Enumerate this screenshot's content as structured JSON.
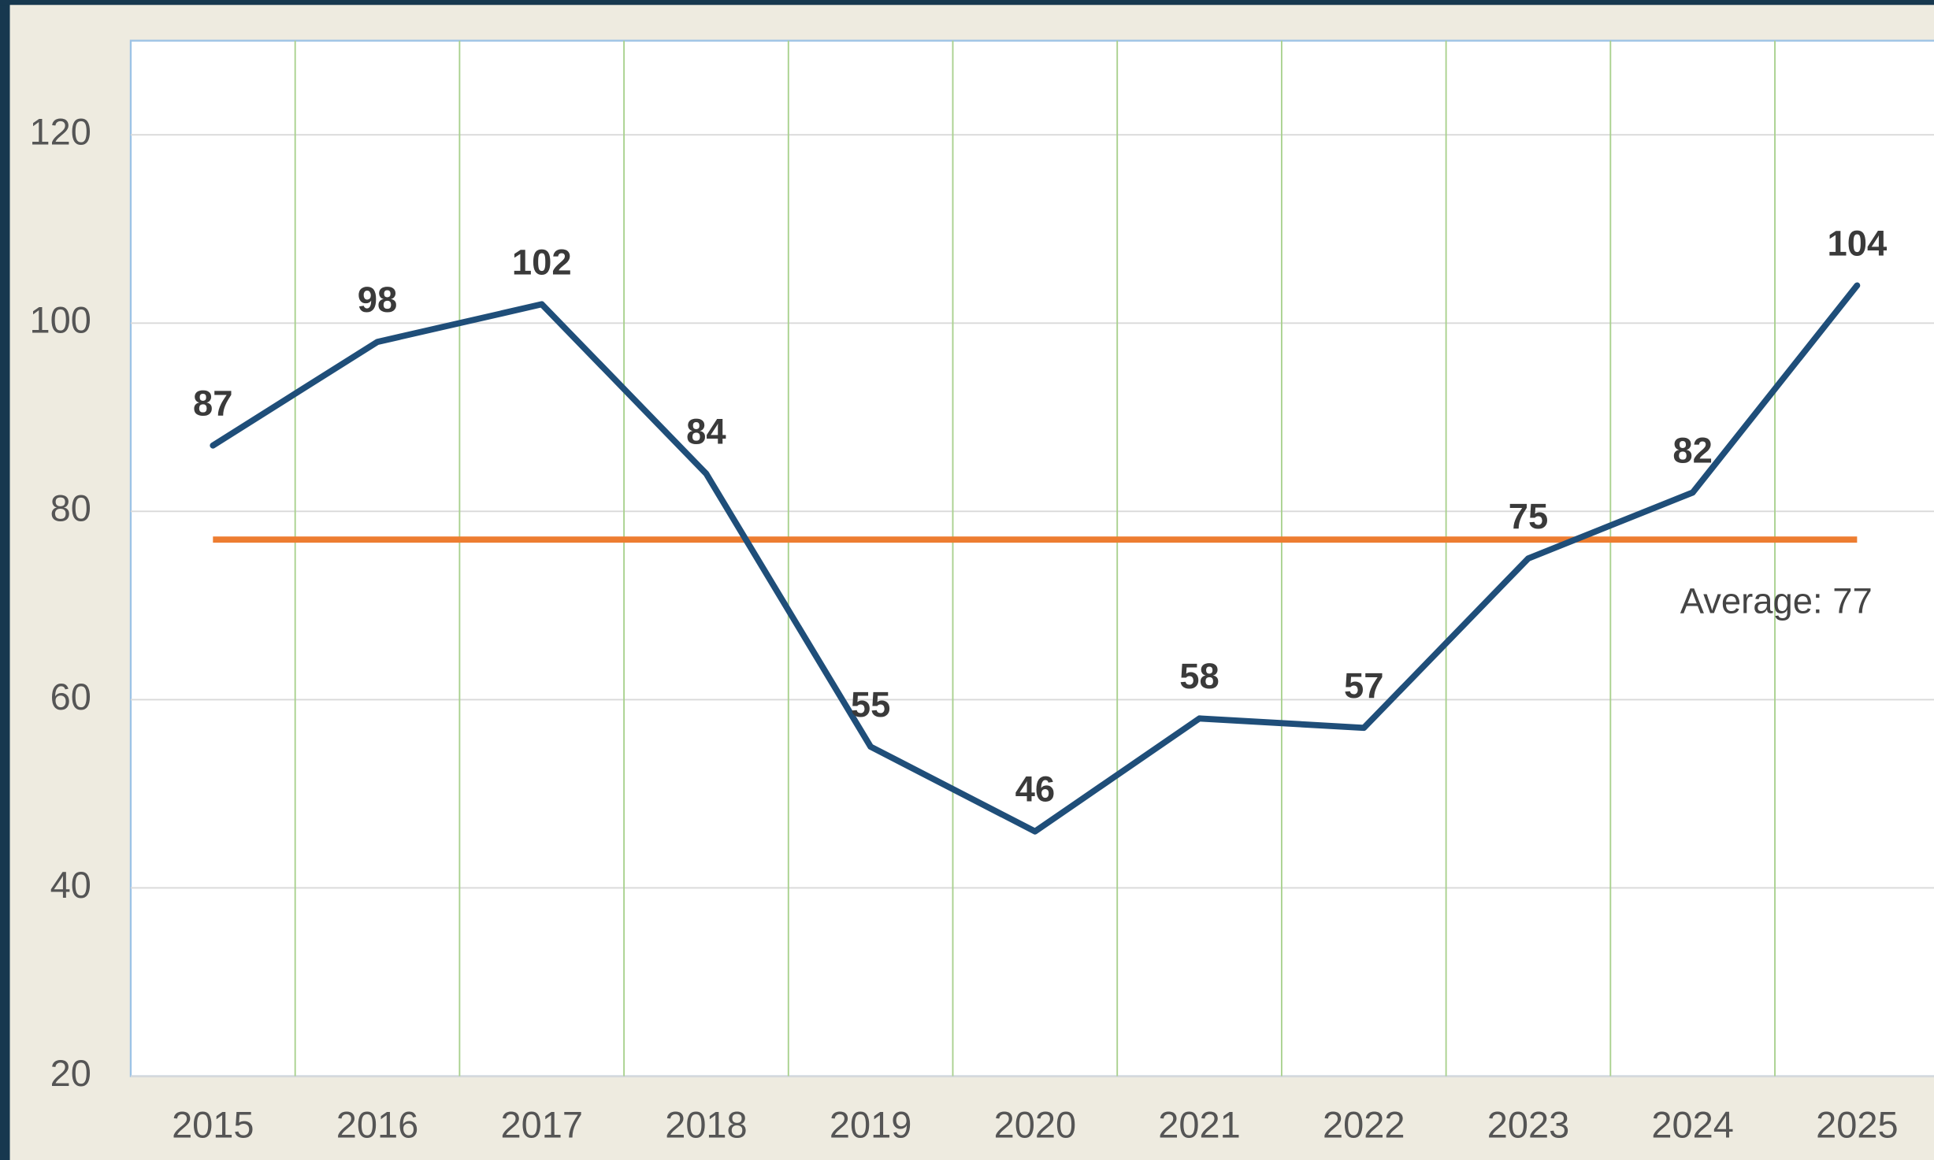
{
  "chart_data": {
    "type": "line",
    "categories": [
      "2015",
      "2016",
      "2017",
      "2018",
      "2019",
      "2020",
      "2021",
      "2022",
      "2023",
      "2024",
      "2025"
    ],
    "series": [
      {
        "color": "#1f4e79",
        "values": [
          87,
          98,
          102,
          84,
          55,
          46,
          58,
          57,
          75,
          82,
          104
        ]
      }
    ],
    "average": {
      "value": 77,
      "label": "Average: 77",
      "color": "#ed7d31"
    },
    "ylim": [
      20,
      130
    ],
    "yticks": [
      20,
      40,
      60,
      80,
      100,
      120
    ],
    "grid": true
  }
}
